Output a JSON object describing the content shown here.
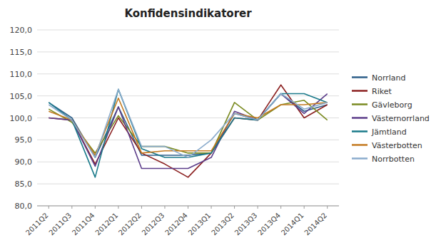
{
  "chart_data": {
    "type": "line",
    "title": "Konfidensindikatorer",
    "categories": [
      "2011Q2",
      "2011Q3",
      "2011Q4",
      "2012Q1",
      "2012Q2",
      "2012Q3",
      "2012Q4",
      "2013Q1",
      "2013Q2",
      "2013Q3",
      "2013Q4",
      "2014Q1",
      "2014Q2"
    ],
    "series": [
      {
        "name": "Norrland",
        "color": "#2E5F8A",
        "values": [
          103.5,
          100.0,
          91.0,
          102.5,
          91.5,
          91.5,
          91.5,
          92.0,
          101.0,
          99.5,
          105.5,
          101.5,
          103.0
        ]
      },
      {
        "name": "Riket",
        "color": "#8B2020",
        "values": [
          100.0,
          99.5,
          89.5,
          100.0,
          92.0,
          89.5,
          86.5,
          92.0,
          100.0,
          99.5,
          107.5,
          100.0,
          103.0
        ]
      },
      {
        "name": "Gävleborg",
        "color": "#7A8A20",
        "values": [
          102.0,
          99.0,
          92.0,
          100.5,
          93.5,
          93.5,
          92.0,
          92.0,
          103.5,
          99.5,
          103.0,
          104.0,
          99.5
        ]
      },
      {
        "name": "Västernorrland",
        "color": "#5C3D8A",
        "values": [
          100.0,
          99.5,
          89.0,
          102.5,
          88.5,
          88.5,
          88.5,
          91.0,
          101.5,
          99.5,
          105.5,
          101.0,
          105.5
        ]
      },
      {
        "name": "Jämtland",
        "color": "#1A7A8A",
        "values": [
          103.5,
          99.5,
          86.5,
          106.5,
          93.0,
          91.0,
          91.0,
          92.0,
          100.0,
          99.5,
          105.5,
          105.5,
          103.5
        ]
      },
      {
        "name": "Västerbotten",
        "color": "#C47A20",
        "values": [
          101.5,
          99.5,
          91.5,
          104.5,
          92.0,
          92.5,
          92.5,
          92.5,
          101.0,
          100.0,
          103.0,
          103.0,
          103.5
        ]
      },
      {
        "name": "Norrbotten",
        "color": "#8AABCC",
        "values": [
          103.0,
          99.5,
          91.0,
          106.5,
          93.5,
          93.5,
          91.0,
          95.0,
          101.0,
          99.5,
          105.5,
          102.0,
          103.5
        ]
      }
    ],
    "ylim": [
      80.0,
      120.0
    ],
    "yticks": [
      {
        "value": 80.0,
        "label": "80,0"
      },
      {
        "value": 85.0,
        "label": "85,0"
      },
      {
        "value": 90.0,
        "label": "90,0"
      },
      {
        "value": 95.0,
        "label": "95,0"
      },
      {
        "value": 100.0,
        "label": "100,0"
      },
      {
        "value": 105.0,
        "label": "105,0"
      },
      {
        "value": 110.0,
        "label": "110,0"
      },
      {
        "value": 115.0,
        "label": "115,0"
      },
      {
        "value": 120.0,
        "label": "120,0"
      }
    ],
    "grid": true,
    "legend": "right"
  }
}
